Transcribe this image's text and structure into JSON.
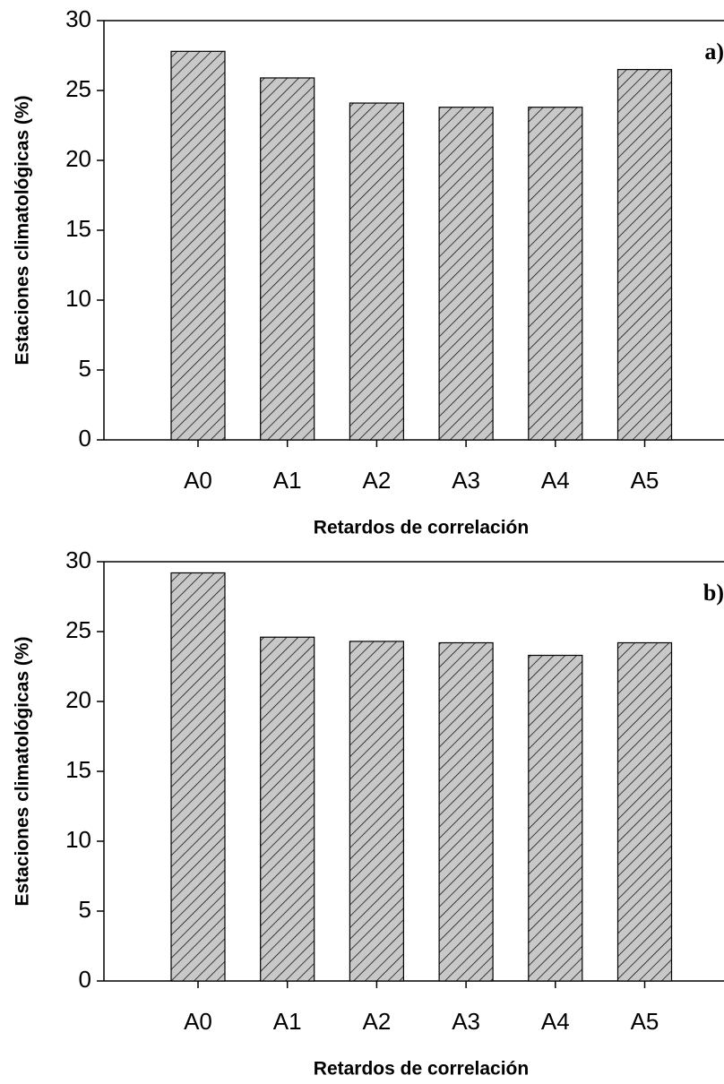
{
  "chart_data": [
    {
      "type": "bar",
      "annotation": "a)",
      "xlabel": "Retardos de correlación",
      "ylabel": "Estaciones climatológicas (%)",
      "categories": [
        "A0",
        "A1",
        "A2",
        "A3",
        "A4",
        "A5"
      ],
      "values": [
        27.8,
        25.9,
        24.1,
        23.8,
        23.8,
        26.5
      ],
      "color": "#c8c8c8",
      "hatch": true,
      "ylim": [
        0,
        30
      ],
      "yticks": [
        0,
        5,
        10,
        15,
        20,
        25,
        30
      ]
    },
    {
      "type": "bar",
      "annotation": "b)",
      "xlabel": "Retardos de correlación",
      "ylabel": "Estaciones climatológicas (%)",
      "categories": [
        "A0",
        "A1",
        "A2",
        "A3",
        "A4",
        "A5"
      ],
      "values": [
        29.2,
        24.6,
        24.3,
        24.2,
        23.3,
        24.2
      ],
      "color": "#c8c8c8",
      "hatch": true,
      "ylim": [
        0,
        30
      ],
      "yticks": [
        0,
        5,
        10,
        15,
        20,
        25,
        30
      ]
    }
  ]
}
